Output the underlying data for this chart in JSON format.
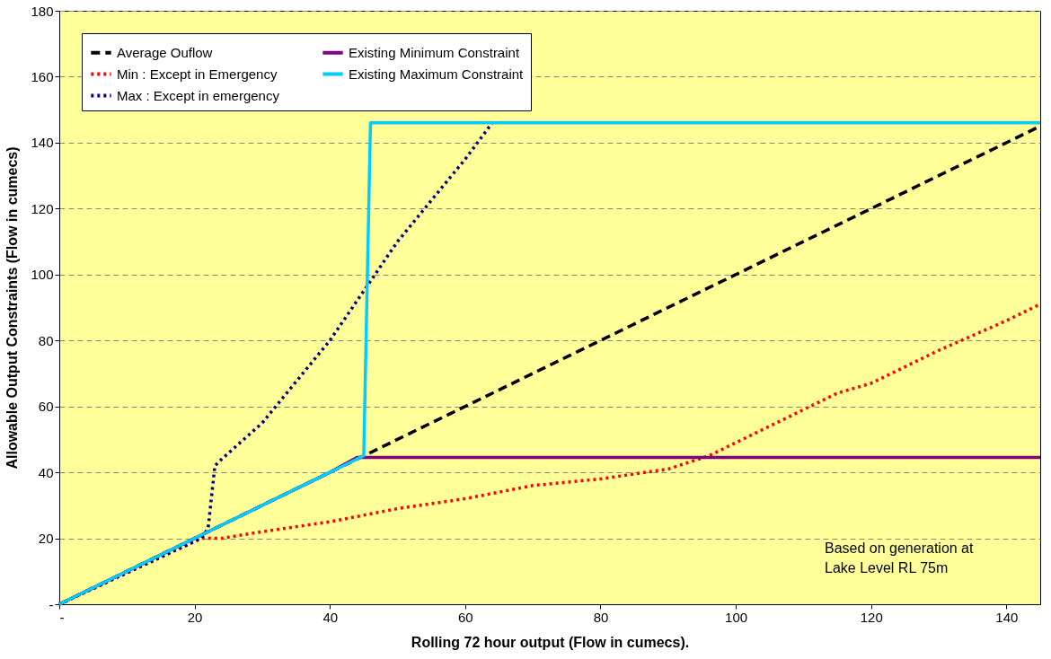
{
  "chart_data": {
    "type": "line",
    "xlabel": "Rolling 72 hour output (Flow in cumecs).",
    "ylabel": "Allowable Output Constraints (Flow in cumecs)",
    "xlim": [
      0,
      145
    ],
    "ylim": [
      0,
      180
    ],
    "xticks": [
      {
        "value": 0,
        "label": "-"
      },
      20,
      40,
      60,
      80,
      100,
      120,
      140
    ],
    "yticks": [
      {
        "value": 0,
        "label": "-"
      },
      20,
      40,
      60,
      80,
      100,
      120,
      140,
      160,
      180
    ],
    "grid": "y",
    "legend": "top left",
    "marker": "none",
    "annotations": [
      "Based on generation at\nLake Level RL 75m"
    ],
    "series": [
      {
        "name": "Average Ouflow",
        "color": "#000000",
        "line_style": "dashed",
        "x": [
          0,
          145
        ],
        "values": [
          0,
          145
        ]
      },
      {
        "name": "Min : Except in Emergency",
        "color": "#ff0000",
        "line_style": "dotted",
        "x": [
          0,
          21,
          24,
          30,
          40,
          50,
          60,
          70,
          80,
          90,
          96,
          100,
          108,
          115,
          120,
          130,
          140,
          145
        ],
        "values": [
          0,
          20,
          20,
          22,
          25,
          29,
          32,
          36,
          38,
          41,
          45,
          49,
          57,
          64,
          67,
          77,
          86,
          91
        ]
      },
      {
        "name": "Max : Except in emergency",
        "color": "#000080",
        "line_style": "dotted",
        "x": [
          0,
          21,
          22,
          23,
          24,
          30,
          40,
          45,
          50,
          60,
          64
        ],
        "values": [
          0,
          20,
          23,
          42,
          44,
          55,
          80,
          95,
          110,
          135,
          146
        ]
      },
      {
        "name": "Existing Minimum Constraint",
        "color": "#800080",
        "line_style": "solid",
        "x": [
          0,
          40,
          44,
          145
        ],
        "values": [
          0,
          40,
          44.5,
          44.5
        ]
      },
      {
        "name": "Existing Maximum Constraint",
        "color": "#00ccff",
        "line_style": "solid",
        "x": [
          0,
          40,
          42,
          44,
          45,
          46,
          145
        ],
        "values": [
          0,
          40,
          42,
          44,
          45,
          146,
          146
        ]
      }
    ]
  }
}
